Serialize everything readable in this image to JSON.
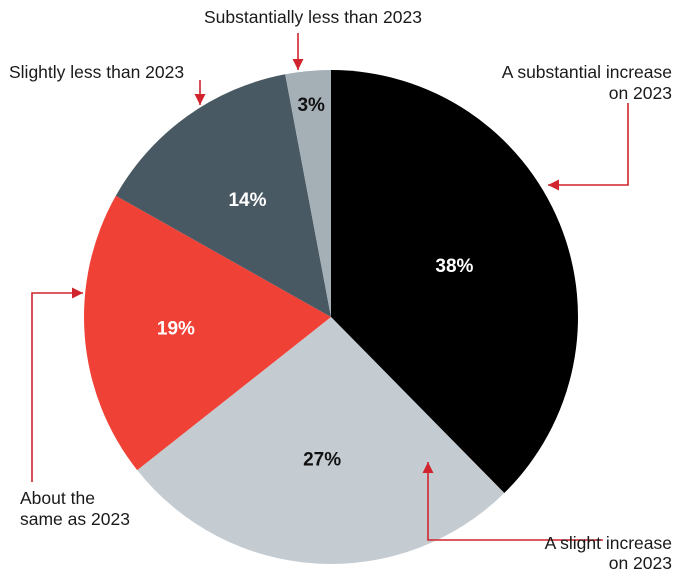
{
  "chart_data": {
    "type": "pie",
    "start_angle": "12 o'clock",
    "direction": "clockwise",
    "slices": [
      {
        "value": 38,
        "value_label": "38%",
        "category": [
          "A substantial increase",
          "on 2023"
        ],
        "color": "#000000",
        "label_color": "#ffffff"
      },
      {
        "value": 27,
        "value_label": "27%",
        "category": [
          "A slight increase",
          "on 2023"
        ],
        "color": "#c5ccd1",
        "label_color": "#111111"
      },
      {
        "value": 19,
        "value_label": "19%",
        "category": [
          "About the",
          "same as 2023"
        ],
        "color": "#ef4136",
        "label_color": "#ffffff"
      },
      {
        "value": 14,
        "value_label": "14%",
        "category": [
          "Slightly less than 2023"
        ],
        "color": "#495963",
        "label_color": "#ffffff"
      },
      {
        "value": 3,
        "value_label": "3%",
        "category": [
          "Substantially less than 2023"
        ],
        "color": "#a5afb6",
        "label_color": "#111111"
      }
    ],
    "annotation_color": "#d0242e"
  }
}
